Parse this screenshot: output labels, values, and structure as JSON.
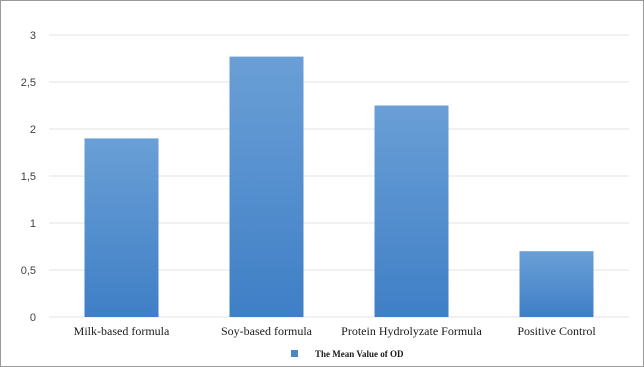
{
  "chart_data": {
    "type": "bar",
    "categories": [
      "Milk-based formula",
      "Soy-based formula",
      "Protein Hydrolyzate Formula",
      "Positive Control"
    ],
    "series": [
      {
        "name": "The Mean Value of OD",
        "values": [
          1.9,
          2.77,
          2.25,
          0.7
        ]
      }
    ],
    "y_ticks": [
      "0",
      "0,5",
      "1",
      "1,5",
      "2",
      "2,5",
      "3"
    ],
    "ylim": [
      0,
      3
    ],
    "grid": true,
    "legend": "bottom",
    "colors": {
      "bar_top": "#6a9fd6",
      "bar_bottom": "#3f7fc6",
      "grid": "#e3e3e3",
      "legend": "#4a86c8"
    }
  }
}
